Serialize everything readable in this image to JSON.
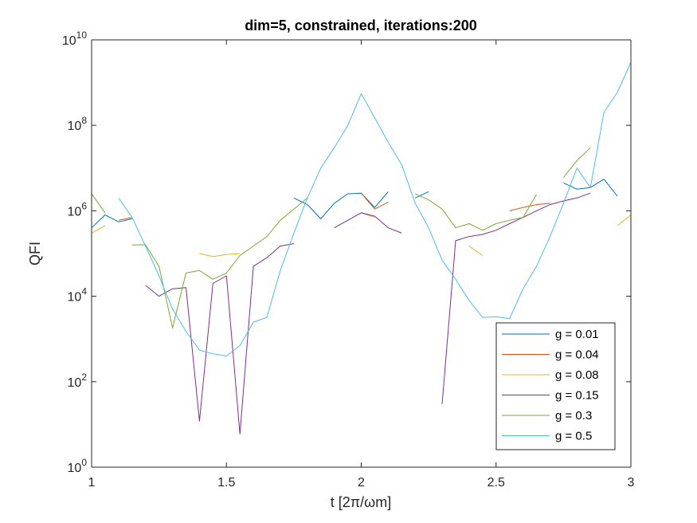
{
  "chart_data": {
    "type": "line",
    "title": "dim=5, constrained, iterations:200",
    "xlabel": "t [2π/ωm]",
    "ylabel": "QFI",
    "xlim": [
      1,
      3
    ],
    "ylim": [
      1,
      10000000000
    ],
    "yscale": "log",
    "xticks": [
      "1",
      "1.5",
      "2",
      "2.5",
      "3"
    ],
    "xtick_values": [
      1,
      1.5,
      2,
      2.5,
      3
    ],
    "yticks": [
      {
        "base": "10",
        "exp": "0",
        "value": 1
      },
      {
        "base": "10",
        "exp": "2",
        "value": 100
      },
      {
        "base": "10",
        "exp": "4",
        "value": 10000
      },
      {
        "base": "10",
        "exp": "6",
        "value": 1000000
      },
      {
        "base": "10",
        "exp": "8",
        "value": 100000000
      },
      {
        "base": "10",
        "exp": "10",
        "value": 10000000000
      }
    ],
    "grid": false,
    "legend_position": "bottom-right",
    "series": [
      {
        "name": "g = 0.01",
        "color": "#0072BD",
        "segments": [
          [
            [
              1.0,
              400000
            ],
            [
              1.05,
              800000
            ],
            [
              1.1,
              550000
            ],
            [
              1.15,
              650000
            ]
          ],
          [
            [
              1.75,
              2000000
            ],
            [
              1.8,
              1400000
            ],
            [
              1.85,
              650000
            ],
            [
              1.9,
              1500000
            ],
            [
              1.95,
              2500000
            ],
            [
              2.0,
              2600000
            ],
            [
              2.05,
              1200000
            ],
            [
              2.1,
              2800000
            ]
          ],
          [
            [
              2.2,
              2000000
            ],
            [
              2.25,
              2800000
            ]
          ],
          [
            [
              2.75,
              4500000
            ],
            [
              2.8,
              3200000
            ],
            [
              2.85,
              3500000
            ],
            [
              2.9,
              5500000
            ],
            [
              2.95,
              2200000
            ]
          ]
        ]
      },
      {
        "name": "g = 0.04",
        "color": "#D95319",
        "segments": [
          [
            [
              1.1,
              600000
            ],
            [
              1.15,
              700000
            ]
          ],
          [
            [
              2.0,
              2600000
            ],
            [
              2.05,
              1100000
            ],
            [
              2.1,
              1600000
            ]
          ],
          [
            [
              2.55,
              1000000
            ],
            [
              2.6,
              1200000
            ],
            [
              2.65,
              1400000
            ],
            [
              2.7,
              1500000
            ]
          ]
        ]
      },
      {
        "name": "g = 0.08",
        "color": "#EDB120",
        "segments": [
          [
            [
              1.0,
              300000
            ],
            [
              1.05,
              450000
            ]
          ],
          [
            [
              1.4,
              100000
            ],
            [
              1.45,
              85000
            ],
            [
              1.5,
              95000
            ],
            [
              1.55,
              100000
            ]
          ],
          [
            [
              2.0,
              900000
            ],
            [
              2.05,
              700000
            ]
          ],
          [
            [
              2.4,
              150000
            ],
            [
              2.45,
              90000
            ]
          ],
          [
            [
              2.95,
              450000
            ],
            [
              3.0,
              800000
            ]
          ]
        ]
      },
      {
        "name": "g = 0.15",
        "color": "#7E2F8E",
        "segments": [
          [
            [
              1.2,
              18000
            ],
            [
              1.25,
              10000
            ],
            [
              1.3,
              15000
            ],
            [
              1.35,
              16000
            ],
            [
              1.4,
              12
            ],
            [
              1.45,
              20000
            ],
            [
              1.5,
              30000
            ],
            [
              1.55,
              6
            ],
            [
              1.6,
              50000
            ],
            [
              1.65,
              80000
            ],
            [
              1.7,
              150000
            ],
            [
              1.75,
              170000
            ]
          ],
          [
            [
              1.9,
              400000
            ],
            [
              1.95,
              600000
            ],
            [
              2.0,
              900000
            ],
            [
              2.05,
              750000
            ],
            [
              2.1,
              400000
            ],
            [
              2.15,
              300000
            ]
          ],
          [
            [
              2.3,
              30
            ],
            [
              2.35,
              200000
            ],
            [
              2.4,
              250000
            ],
            [
              2.45,
              280000
            ],
            [
              2.5,
              350000
            ],
            [
              2.55,
              500000
            ],
            [
              2.6,
              700000
            ],
            [
              2.65,
              1000000
            ],
            [
              2.7,
              1400000
            ],
            [
              2.75,
              1700000
            ],
            [
              2.8,
              2000000
            ],
            [
              2.85,
              2600000
            ]
          ]
        ]
      },
      {
        "name": "g = 0.3",
        "color": "#77AC30",
        "segments": [
          [
            [
              1.0,
              2500000
            ],
            [
              1.05,
              900000
            ]
          ],
          [
            [
              1.15,
              160000
            ],
            [
              1.2,
              160000
            ],
            [
              1.25,
              50000
            ],
            [
              1.3,
              1800
            ],
            [
              1.35,
              35000
            ],
            [
              1.4,
              40000
            ],
            [
              1.45,
              25000
            ],
            [
              1.5,
              35000
            ],
            [
              1.55,
              90000
            ],
            [
              1.6,
              150000
            ],
            [
              1.65,
              250000
            ],
            [
              1.7,
              600000
            ],
            [
              1.75,
              1100000
            ],
            [
              1.8,
              2000000
            ]
          ],
          [
            [
              2.2,
              2500000
            ],
            [
              2.25,
              1800000
            ],
            [
              2.3,
              1100000
            ],
            [
              2.35,
              400000
            ],
            [
              2.4,
              500000
            ],
            [
              2.45,
              350000
            ],
            [
              2.5,
              500000
            ],
            [
              2.55,
              600000
            ],
            [
              2.6,
              700000
            ],
            [
              2.65,
              2400000
            ]
          ],
          [
            [
              2.75,
              6000000
            ],
            [
              2.8,
              15000000
            ],
            [
              2.85,
              30000000
            ]
          ]
        ]
      },
      {
        "name": "g = 0.5",
        "color": "#4DBEEE",
        "segments": [
          [
            [
              1.1,
              2000000
            ],
            [
              1.15,
              700000
            ],
            [
              1.2,
              150000
            ],
            [
              1.25,
              30000
            ],
            [
              1.3,
              5000
            ],
            [
              1.35,
              1500
            ],
            [
              1.4,
              550
            ],
            [
              1.45,
              450
            ],
            [
              1.5,
              400
            ],
            [
              1.55,
              700
            ],
            [
              1.6,
              2500
            ],
            [
              1.65,
              3200
            ],
            [
              1.7,
              40000
            ],
            [
              1.75,
              300000
            ],
            [
              1.8,
              2000000
            ],
            [
              1.85,
              10000000
            ],
            [
              1.9,
              30000000
            ],
            [
              1.95,
              100000000
            ],
            [
              2.0,
              550000000
            ],
            [
              2.05,
              150000000
            ],
            [
              2.1,
              40000000
            ],
            [
              2.15,
              12000000
            ],
            [
              2.2,
              1500000
            ],
            [
              2.25,
              400000
            ],
            [
              2.3,
              70000
            ],
            [
              2.35,
              25000
            ],
            [
              2.4,
              8000
            ],
            [
              2.45,
              3200
            ],
            [
              2.5,
              3300
            ],
            [
              2.55,
              3000
            ],
            [
              2.6,
              15000
            ],
            [
              2.65,
              50000
            ],
            [
              2.7,
              250000
            ],
            [
              2.75,
              1500000
            ],
            [
              2.8,
              10000000
            ],
            [
              2.85,
              3500000
            ],
            [
              2.9,
              200000000
            ],
            [
              2.95,
              600000000
            ],
            [
              3.0,
              3000000000
            ]
          ]
        ]
      }
    ]
  }
}
